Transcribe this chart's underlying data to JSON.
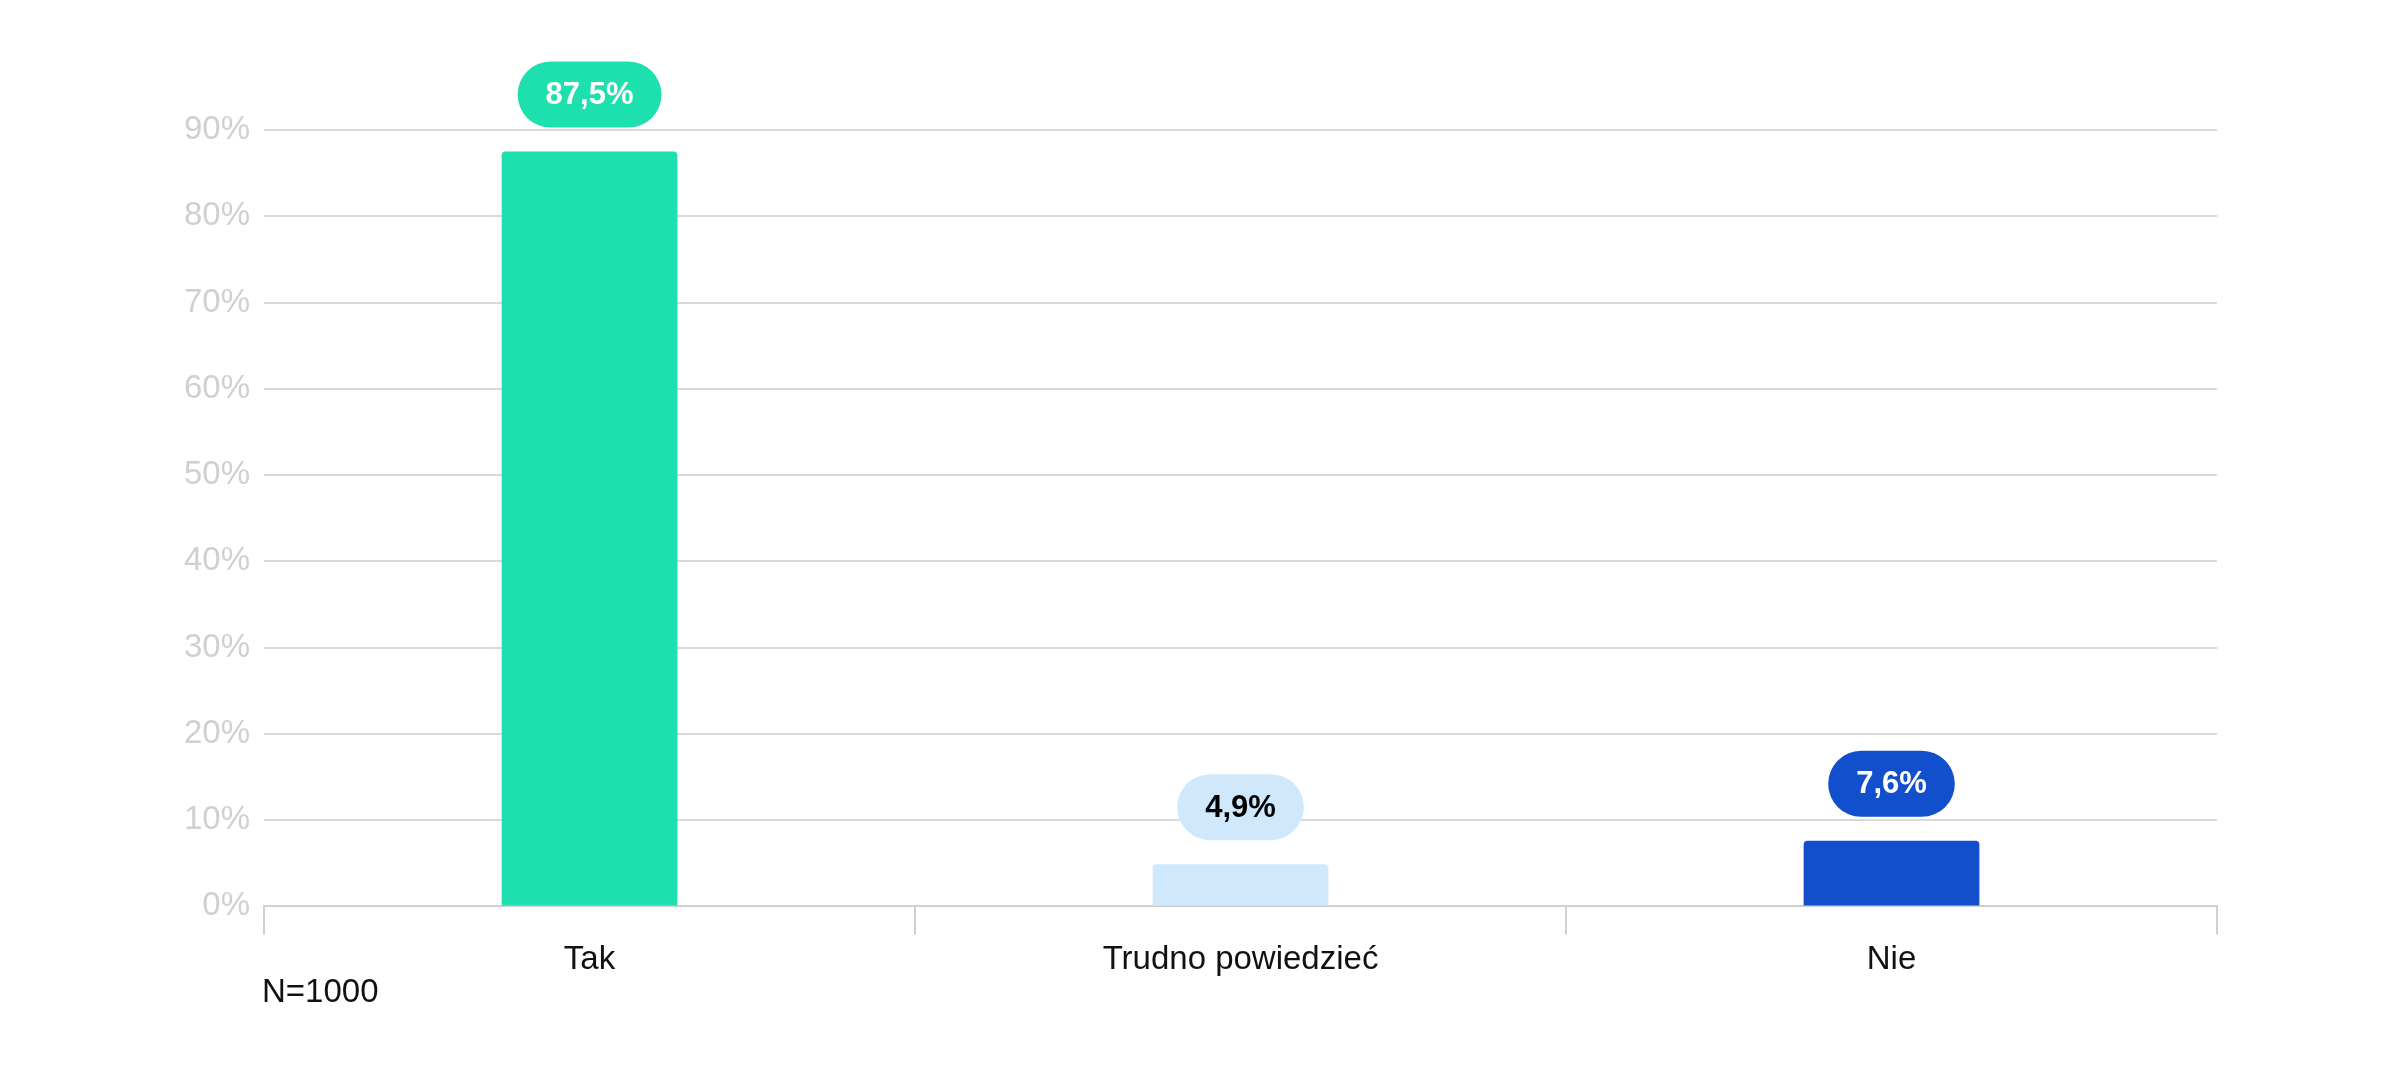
{
  "chart_data": {
    "type": "bar",
    "categories": [
      "Tak",
      "Trudno powiedzieć",
      "Nie"
    ],
    "values": [
      87.5,
      4.9,
      7.6
    ],
    "colors": [
      "#1de0ae",
      "#cfe8fb",
      "#124fcc"
    ],
    "value_labels": [
      "87,5%",
      "4,9%",
      "7,6%"
    ],
    "ylim": [
      0,
      90
    ],
    "yticks": [
      {
        "value": 0,
        "label": "0%"
      },
      {
        "value": 10,
        "label": "10%"
      },
      {
        "value": 20,
        "label": "20%"
      },
      {
        "value": 30,
        "label": "30%"
      },
      {
        "value": 40,
        "label": "40%"
      },
      {
        "value": 50,
        "label": "50%"
      },
      {
        "value": 60,
        "label": "60%"
      },
      {
        "value": 70,
        "label": "70%"
      },
      {
        "value": 80,
        "label": "80%"
      },
      {
        "value": 90,
        "label": "90%"
      }
    ],
    "grid": "y",
    "legend": false,
    "annotations": [
      "N=1000"
    ]
  }
}
